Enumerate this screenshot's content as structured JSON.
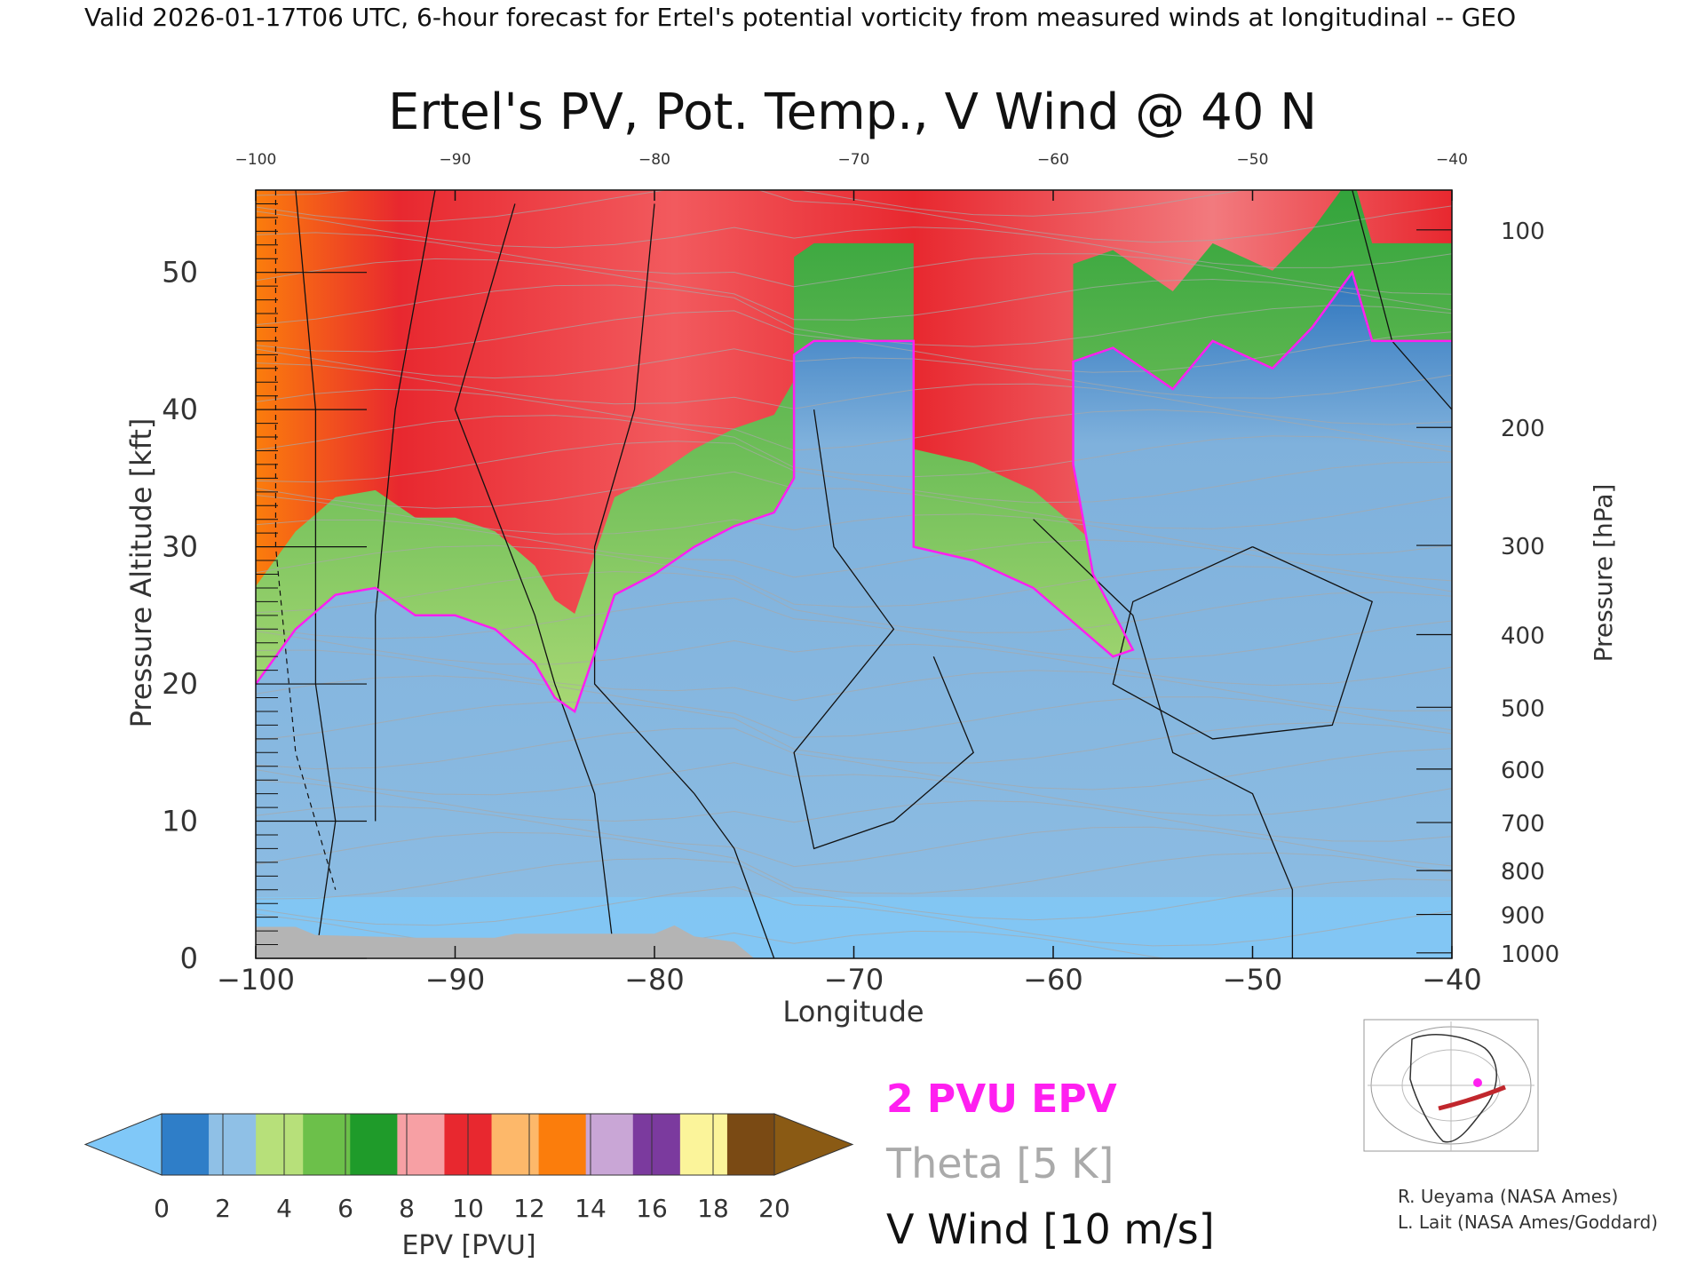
{
  "header": {
    "valid_line": "Valid 2026-01-17T06 UTC, 6-hour forecast for Ertel's potential vorticity from measured winds at longitudinal -- GEO"
  },
  "chart_data": {
    "type": "heatmap",
    "title": "Ertel's PV, Pot. Temp., V Wind @ 40 N",
    "xlabel": "Longitude",
    "ylabel_left": "Pressure Altitude [kft]",
    "ylabel_right": "Pressure [hPa]",
    "xlim": [
      -100,
      -40
    ],
    "ylim": [
      0,
      56
    ],
    "x_ticks": [
      -100,
      -90,
      -80,
      -70,
      -60,
      -50,
      -40
    ],
    "y_ticks_kft": [
      0,
      10,
      20,
      30,
      40,
      50
    ],
    "pressure_ticks": [
      {
        "hPa": "100",
        "kft": 53.1
      },
      {
        "hPa": "200",
        "kft": 38.7
      },
      {
        "hPa": "300",
        "kft": 30.1
      },
      {
        "hPa": "400",
        "kft": 23.6
      },
      {
        "hPa": "500",
        "kft": 18.3
      },
      {
        "hPa": "600",
        "kft": 13.8
      },
      {
        "hPa": "700",
        "kft": 9.9
      },
      {
        "hPa": "800",
        "kft": 6.4
      },
      {
        "hPa": "900",
        "kft": 3.2
      },
      {
        "hPa": "1000",
        "kft": 0.4
      }
    ],
    "colorbar": {
      "label": "EPV [PVU]",
      "ticks": [
        "0",
        "2",
        "4",
        "6",
        "8",
        "10",
        "12",
        "14",
        "16",
        "18",
        "20"
      ],
      "colors": [
        "#2f7ec8",
        "#8fc0e6",
        "#b7e07a",
        "#6cc04a",
        "#1f9b2a",
        "#f7a0a4",
        "#e8282f",
        "#fdb86a",
        "#fb7d0c",
        "#c9a6d6",
        "#7b3a9e",
        "#fbf49a",
        "#7a4a14"
      ],
      "under_color": "#80c8f8",
      "over_color": "#8a5a14"
    },
    "pv_boundary_kft": [
      {
        "lon": -100,
        "kft": 20
      },
      {
        "lon": -98,
        "kft": 24
      },
      {
        "lon": -96,
        "kft": 26.5
      },
      {
        "lon": -94,
        "kft": 27
      },
      {
        "lon": -92,
        "kft": 25
      },
      {
        "lon": -90,
        "kft": 25
      },
      {
        "lon": -88,
        "kft": 24
      },
      {
        "lon": -86,
        "kft": 21.5
      },
      {
        "lon": -85,
        "kft": 19
      },
      {
        "lon": -84,
        "kft": 18
      },
      {
        "lon": -82,
        "kft": 26.5
      },
      {
        "lon": -80,
        "kft": 28
      },
      {
        "lon": -78,
        "kft": 30
      },
      {
        "lon": -76,
        "kft": 31.5
      },
      {
        "lon": -74,
        "kft": 32.5
      },
      {
        "lon": -73,
        "kft": 35
      },
      {
        "lon": -73,
        "kft": 44
      },
      {
        "lon": -72,
        "kft": 45
      },
      {
        "lon": -69,
        "kft": 45
      },
      {
        "lon": -67,
        "kft": 45
      },
      {
        "lon": -67,
        "kft": 30
      },
      {
        "lon": -64,
        "kft": 29
      },
      {
        "lon": -61,
        "kft": 27
      },
      {
        "lon": -59,
        "kft": 24.5
      },
      {
        "lon": -57,
        "kft": 22
      },
      {
        "lon": -56,
        "kft": 22.5
      },
      {
        "lon": -58,
        "kft": 28
      },
      {
        "lon": -59,
        "kft": 36
      },
      {
        "lon": -59,
        "kft": 43.5
      },
      {
        "lon": -57,
        "kft": 44.5
      },
      {
        "lon": -54,
        "kft": 41.5
      },
      {
        "lon": -52,
        "kft": 45
      },
      {
        "lon": -49,
        "kft": 43
      },
      {
        "lon": -47,
        "kft": 46
      },
      {
        "lon": -45,
        "kft": 50
      },
      {
        "lon": -44,
        "kft": 45
      },
      {
        "lon": -40,
        "kft": 45
      }
    ],
    "legend": {
      "epv_label": "2 PVU EPV",
      "theta_label": "Theta [5 K]",
      "wind_label": "V Wind [10 m/s]",
      "epv_color": "#ff1ff0",
      "theta_color": "#aaaaaa",
      "wind_color": "#111111"
    },
    "credits": [
      "R. Ueyama (NASA Ames)",
      "L. Lait (NASA Ames/Goddard)"
    ]
  }
}
